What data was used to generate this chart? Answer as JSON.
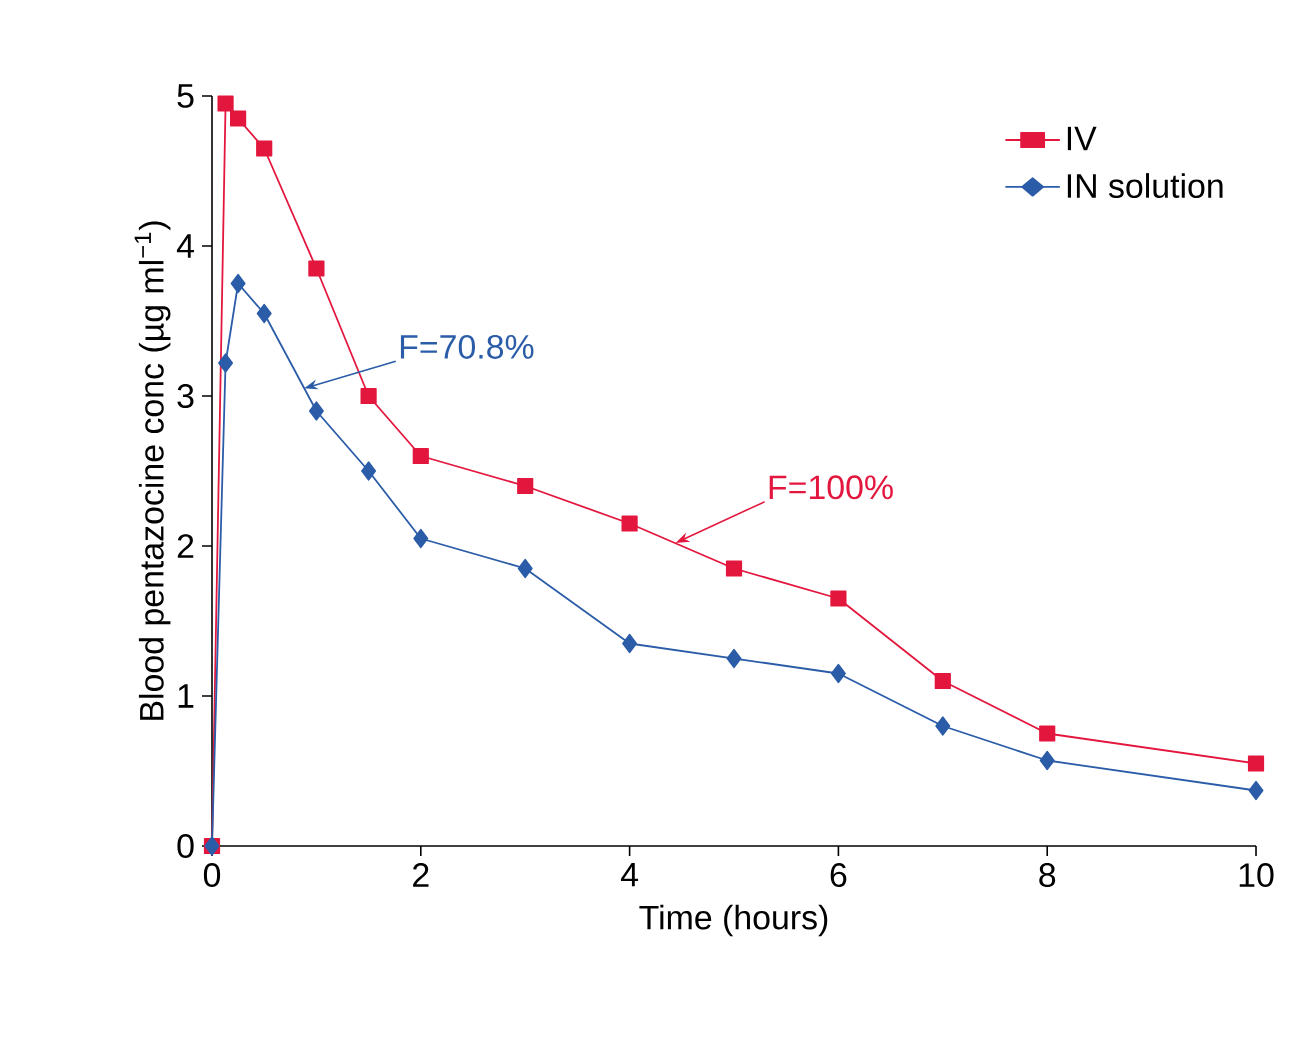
{
  "chart_data": {
    "type": "line",
    "xlabel": "Time (hours)",
    "ylabel": "Blood pentazocine conc (µg ml$^{−1}$)",
    "x": [
      0,
      0.13,
      0.25,
      0.5,
      1,
      1.5,
      2,
      3,
      4,
      5,
      6,
      7,
      8,
      10
    ],
    "series": [
      {
        "name": "IV",
        "color": "#e3173e",
        "marker": "square",
        "values": [
          0,
          4.95,
          4.85,
          4.65,
          3.85,
          3.0,
          2.6,
          2.4,
          2.15,
          1.85,
          1.65,
          1.1,
          0.75,
          0.55
        ]
      },
      {
        "name": "IN solution",
        "color": "#2b5ca8",
        "marker": "diamond",
        "values": [
          0,
          3.22,
          3.75,
          3.55,
          2.9,
          2.5,
          2.05,
          1.85,
          1.35,
          1.25,
          1.15,
          0.8,
          0.57,
          0.37
        ]
      }
    ],
    "xlim": [
      0,
      10
    ],
    "ylim": [
      0,
      5
    ],
    "xticks": [
      0,
      2,
      4,
      6,
      8,
      10
    ],
    "yticks": [
      0,
      1,
      2,
      3,
      4,
      5
    ],
    "legend": "top right",
    "annotations": [
      {
        "text": "F=70.8%",
        "x": 0.88,
        "y": 3.05
      },
      {
        "text": "F=100%",
        "x": 4.44,
        "y": 2.02
      }
    ]
  }
}
